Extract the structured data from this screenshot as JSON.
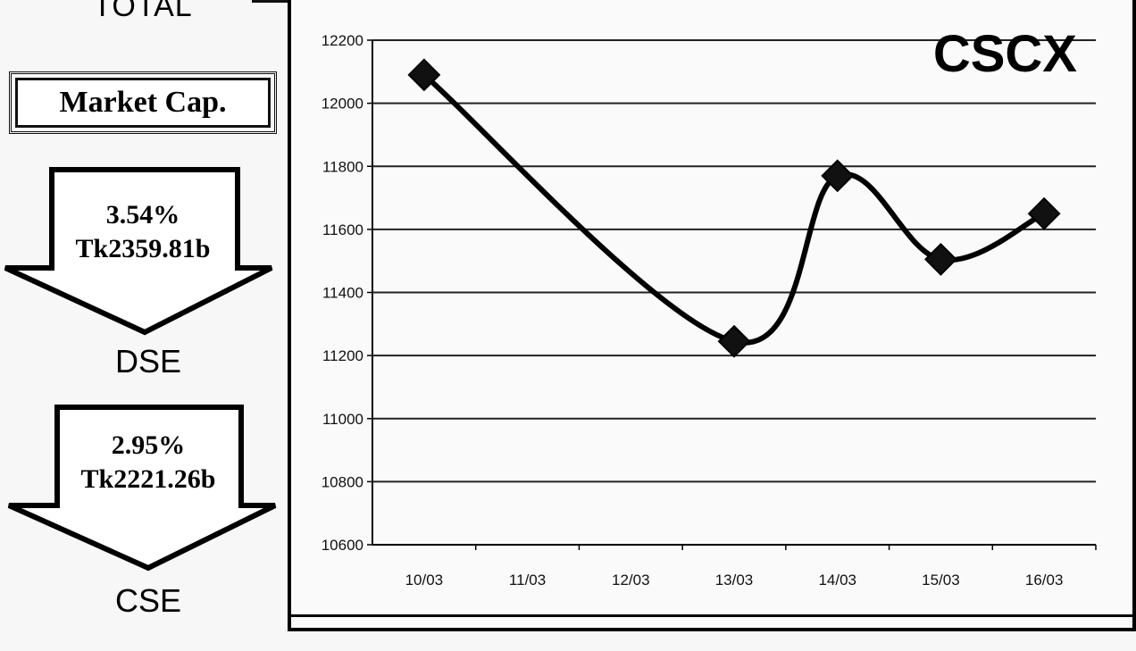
{
  "left_panel": {
    "total_label": "TOTAL",
    "market_cap_label": "Market Cap.",
    "dse": {
      "percent": "3.54%",
      "value": "Tk2359.81b",
      "label": "DSE"
    },
    "cse": {
      "percent": "2.95%",
      "value": "Tk2221.26b",
      "label": "CSE"
    }
  },
  "chart_data": {
    "type": "line",
    "title": "CSCX",
    "categories": [
      "10/03",
      "11/03",
      "12/03",
      "13/03",
      "14/03",
      "15/03",
      "16/03"
    ],
    "series": [
      {
        "values": [
          12090,
          null,
          null,
          11245,
          11770,
          11505,
          11650
        ]
      }
    ],
    "ylim": [
      10600,
      12200
    ],
    "yticks": [
      10600,
      10800,
      11000,
      11200,
      11400,
      11600,
      11800,
      12000,
      12200
    ],
    "grid": true,
    "xlabel": "",
    "ylabel": "",
    "colors": {
      "line": "#000000",
      "marker": "#111111",
      "grid": "#222222"
    }
  }
}
